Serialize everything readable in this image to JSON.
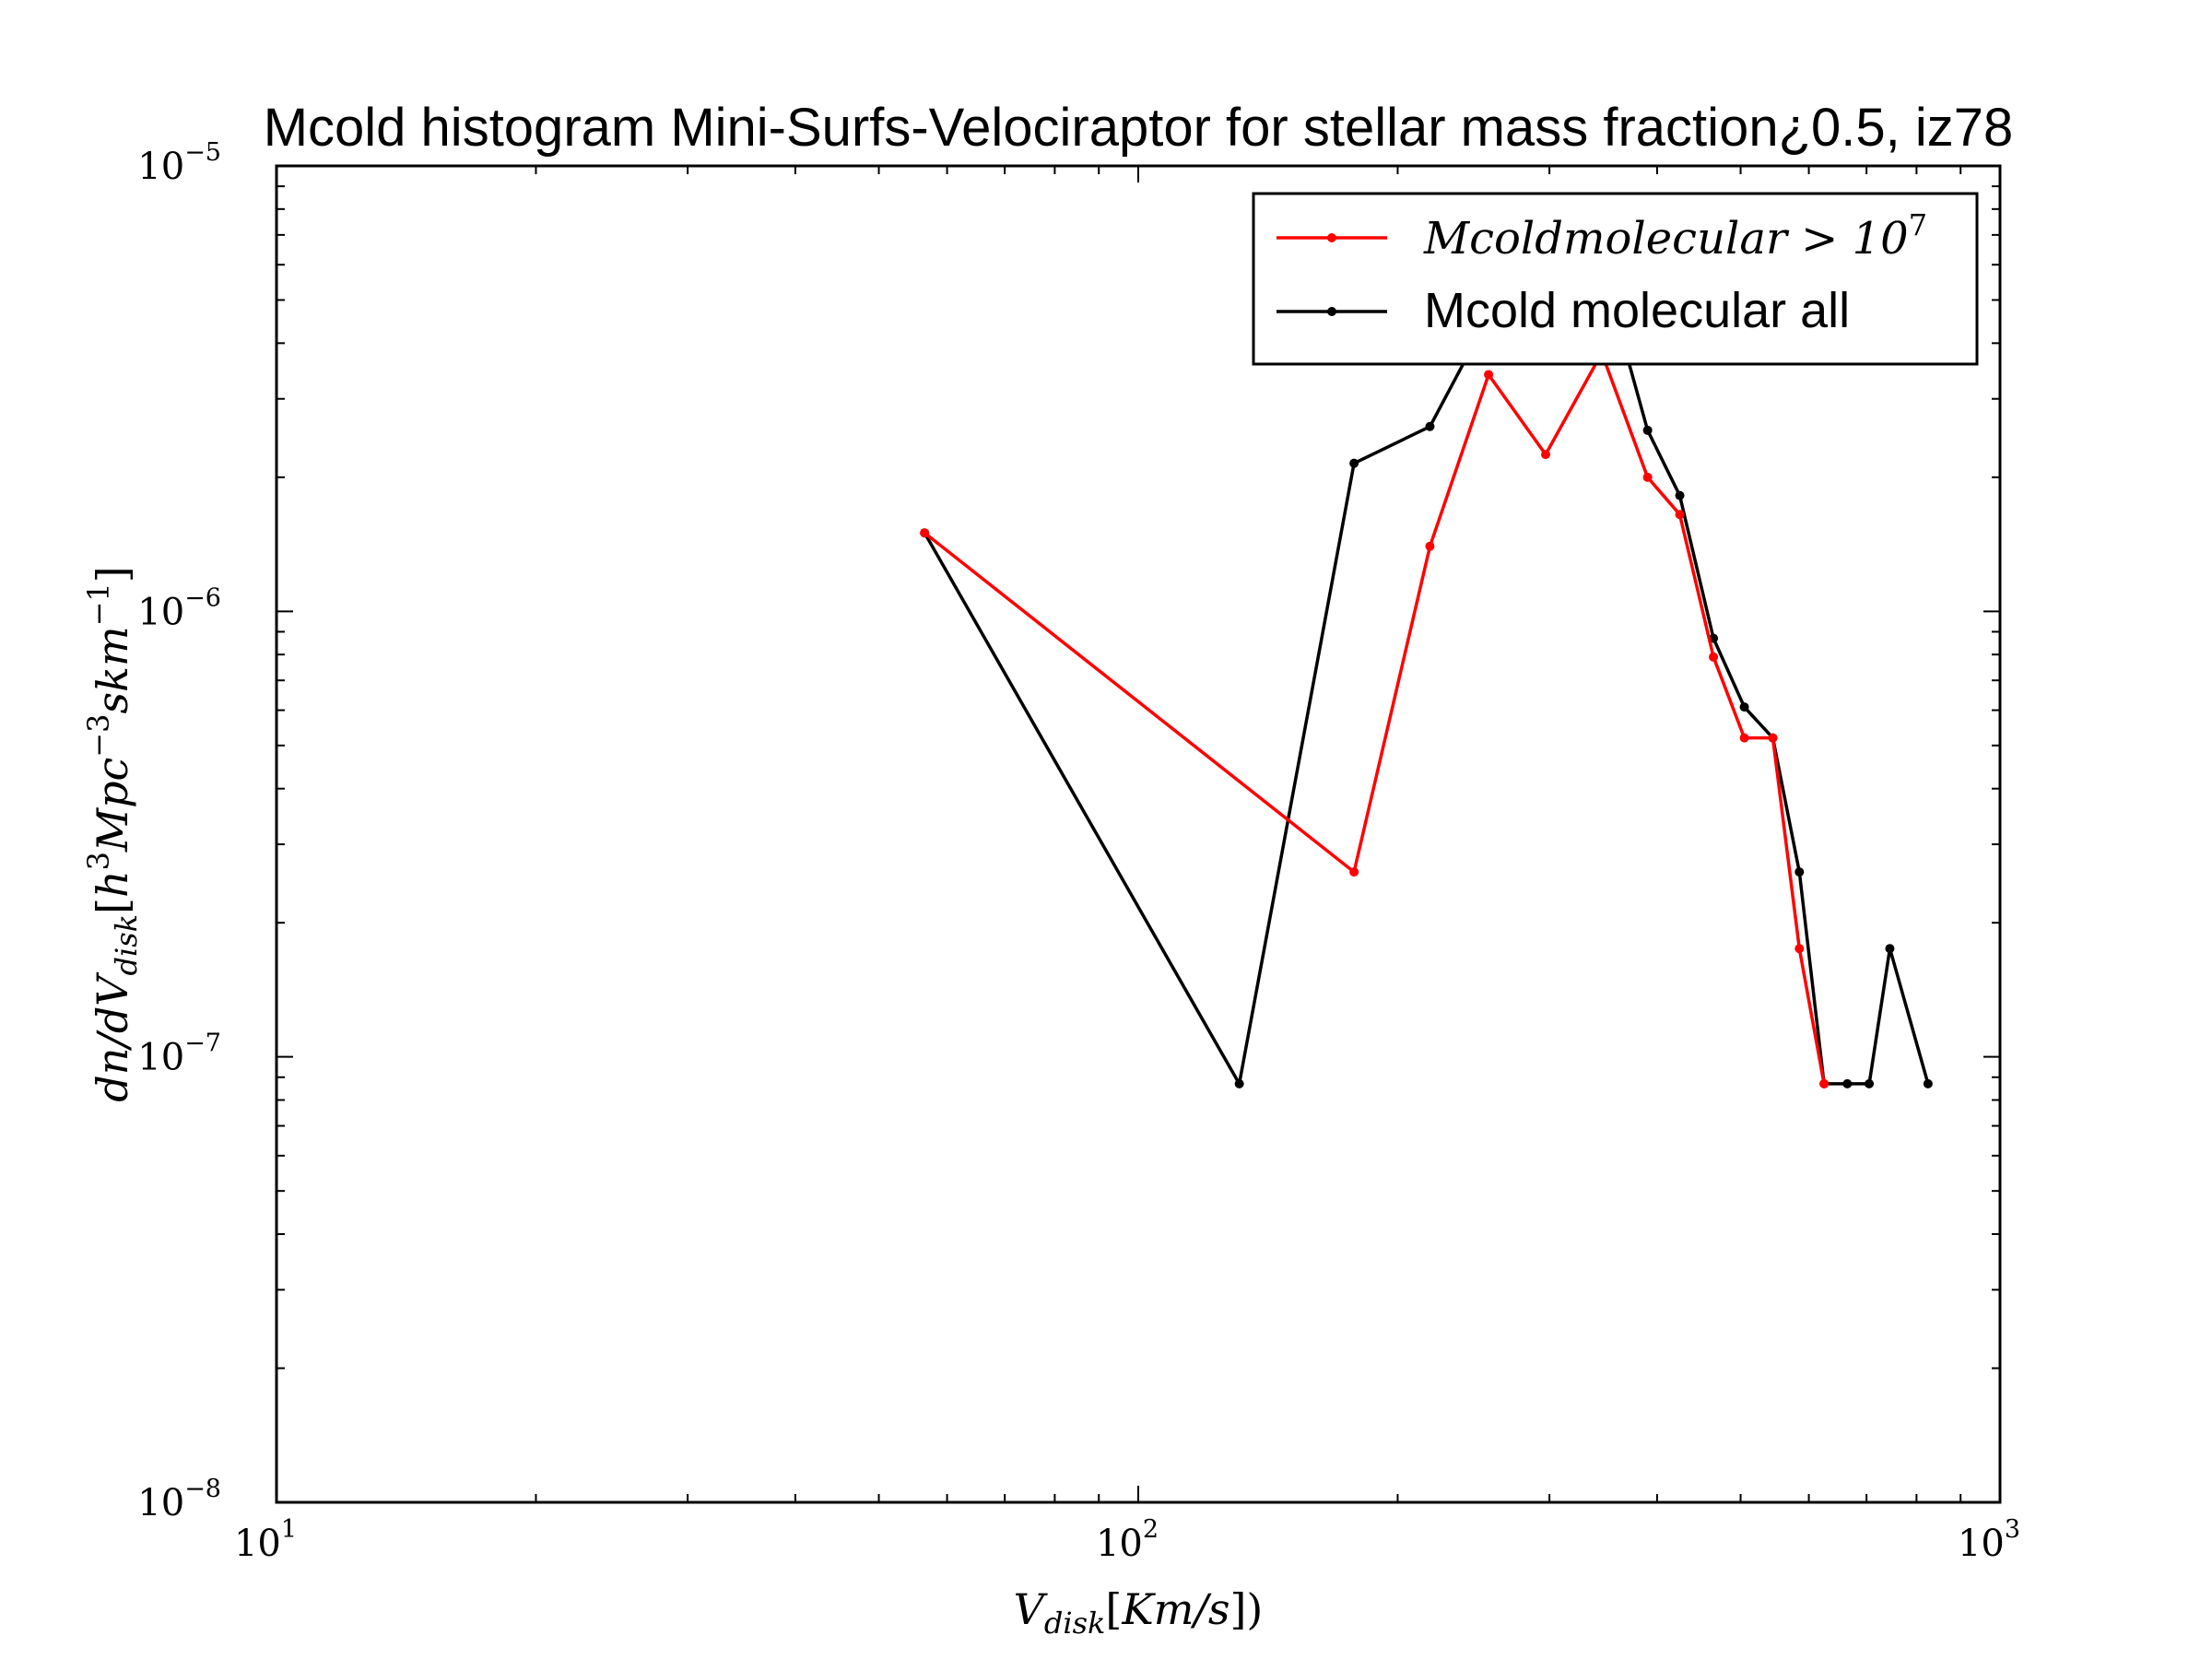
{
  "chart_data": {
    "type": "line",
    "title": "Mcold histogram Mini-Surfs-Velociraptor for stellar mass fraction¿0.5, iz78",
    "xlabel": "V_disk[Km/s])",
    "ylabel": "dn/dV_disk[h^3 Mpc^-3 skm^-1]",
    "xscale": "log",
    "yscale": "log",
    "xlim": [
      10,
      1000
    ],
    "ylim": [
      1e-08,
      1e-05
    ],
    "xticks": [
      {
        "value": 10,
        "base": "10",
        "exp": "1"
      },
      {
        "value": 100,
        "base": "10",
        "exp": "2"
      },
      {
        "value": 1000,
        "base": "10",
        "exp": "3"
      }
    ],
    "yticks": [
      {
        "value": 1e-08,
        "base": "10",
        "exp": "−8"
      },
      {
        "value": 1e-07,
        "base": "10",
        "exp": "−7"
      },
      {
        "value": 1e-06,
        "base": "10",
        "exp": "−6"
      },
      {
        "value": 1e-05,
        "base": "10",
        "exp": "−5"
      }
    ],
    "grid": false,
    "legend_position": "upper-right",
    "series": [
      {
        "name": "Mcoldmolecular > 10^7",
        "legend_main": "Mcoldmolecular > 10",
        "legend_sup": "7",
        "color": "#ff0000",
        "points": [
          [
            56.5,
            1.5e-06
          ],
          [
            178,
            2.6e-07
          ],
          [
            218,
            1.4e-06
          ],
          [
            255,
            3.4e-06
          ],
          [
            297,
            2.25e-06
          ],
          [
            345,
            3.8e-06
          ],
          [
            390,
            2e-06
          ],
          [
            425,
            1.65e-06
          ],
          [
            465,
            7.9e-07
          ],
          [
            505,
            5.2e-07
          ],
          [
            545,
            5.2e-07
          ],
          [
            585,
            1.75e-07
          ],
          [
            625,
            8.7e-08
          ]
        ]
      },
      {
        "name": "Mcold molecular all",
        "legend_main": "Mcold molecular all",
        "legend_sup": "",
        "color": "#000000",
        "points": [
          [
            56.5,
            1.5e-06
          ],
          [
            131,
            8.7e-08
          ],
          [
            178,
            2.15e-06
          ],
          [
            218,
            2.6e-06
          ],
          [
            255,
            4.6e-06
          ],
          [
            297,
            6.5e-06
          ],
          [
            345,
            6e-06
          ],
          [
            390,
            2.55e-06
          ],
          [
            425,
            1.82e-06
          ],
          [
            465,
            8.7e-07
          ],
          [
            505,
            6.1e-07
          ],
          [
            545,
            5.2e-07
          ],
          [
            585,
            2.6e-07
          ],
          [
            625,
            8.7e-08
          ],
          [
            665,
            8.7e-08
          ],
          [
            705,
            8.7e-08
          ],
          [
            745,
            1.75e-07
          ],
          [
            825,
            8.7e-08
          ]
        ]
      }
    ]
  }
}
